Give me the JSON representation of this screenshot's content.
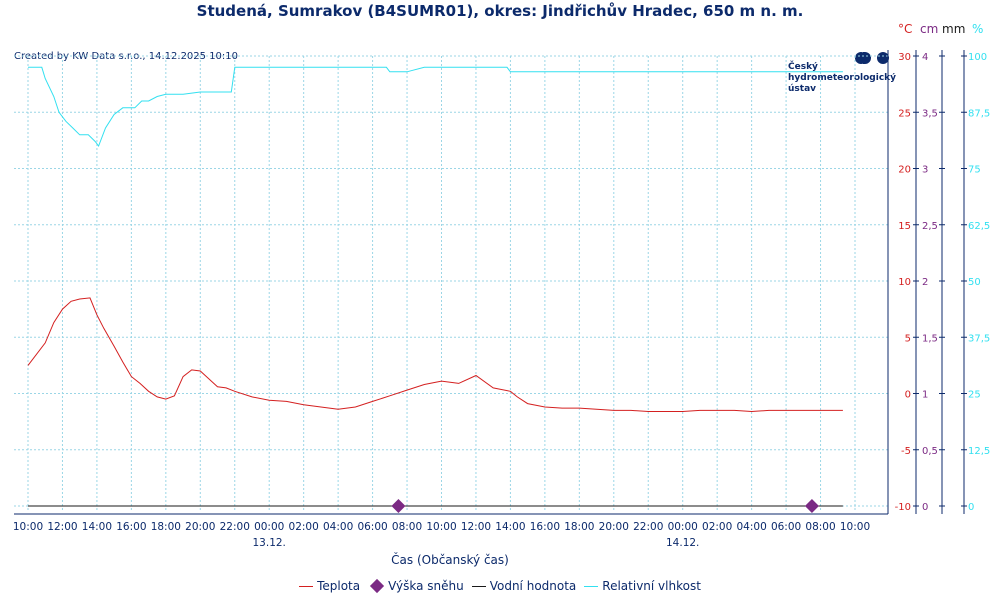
{
  "title": "Studená, Sumrakov (B4SUMR01), okres: Jindřichův Hradec, 650 m n. m.",
  "created": "Created by KW Data s.r.o., 14.12.2025 10:10",
  "logo_text": [
    "Český",
    "hydrometeorologický",
    "ústav"
  ],
  "units": {
    "temperature": "°C",
    "snow": "cm",
    "water": "mm",
    "humidity": "%"
  },
  "colors": {
    "temperature": "#d42020",
    "snow": "#7b2a84",
    "water": "#1a1a1a",
    "humidity": "#33e0f0",
    "axis": "#0c2a6b",
    "grid": "#9bd6e6"
  },
  "axis_title": "Čas (Občanský čas)",
  "legend": [
    {
      "label": "Teplota",
      "kind": "line",
      "color": "#d42020"
    },
    {
      "label": "Výška sněhu",
      "kind": "diamond",
      "color": "#7b2a84"
    },
    {
      "label": "Vodní hodnota",
      "kind": "line",
      "color": "#1a1a1a"
    },
    {
      "label": "Relativní vlhkost",
      "kind": "line",
      "color": "#33e0f0"
    }
  ],
  "chart_data": {
    "type": "line",
    "title": "Studená, Sumrakov (B4SUMR01), okres: Jindřichův Hradec, 650 m n. m.",
    "xlabel": "Čas (Občanský čas)",
    "x_ticks": [
      "10:00",
      "12:00",
      "14:00",
      "16:00",
      "18:00",
      "20:00",
      "22:00",
      "00:00",
      "02:00",
      "04:00",
      "06:00",
      "08:00",
      "10:00",
      "12:00",
      "14:00",
      "16:00",
      "18:00",
      "20:00",
      "22:00",
      "00:00",
      "02:00",
      "04:00",
      "06:00",
      "08:00",
      "10:00"
    ],
    "date_labels": [
      {
        "label": "13.12.",
        "at": "00:00"
      },
      {
        "label": "14.12.",
        "at": "00:00"
      }
    ],
    "xlim_hours_from_start": [
      0,
      48
    ],
    "axes": {
      "temperature": {
        "unit": "°C",
        "ylim": [
          -10,
          30
        ],
        "ticks": [
          "-10",
          "-5",
          "0",
          "5",
          "10",
          "15",
          "20",
          "25",
          "30"
        ]
      },
      "snow": {
        "unit": "cm",
        "ylim": [
          0,
          4
        ],
        "ticks": [
          "0",
          "0,5",
          "1",
          "1,5",
          "2",
          "2,5",
          "3",
          "3,5",
          "4"
        ]
      },
      "water": {
        "unit": "mm",
        "ylim": [
          0,
          4
        ]
      },
      "humidity": {
        "unit": "%",
        "ylim": [
          0,
          100
        ],
        "ticks": [
          "0",
          "12,5",
          "25",
          "37,5",
          "50",
          "62,5",
          "75",
          "87,5",
          "100"
        ]
      }
    },
    "grid": true,
    "legend_position": "bottom",
    "series": [
      {
        "name": "Teplota",
        "axis": "temperature",
        "color": "#d42020",
        "x": [
          0,
          1,
          1.5,
          2,
          2.5,
          3,
          3.6,
          4,
          4.4,
          5,
          5.5,
          6,
          6.5,
          7,
          7.5,
          8,
          8.5,
          9,
          9.5,
          10,
          10.5,
          11,
          11.5,
          12,
          13,
          14,
          15,
          16,
          17,
          18,
          19,
          20,
          21,
          22,
          23,
          24,
          25,
          26,
          27,
          28,
          28.4,
          29,
          30,
          31,
          32,
          33,
          34,
          35,
          36,
          37,
          38,
          39,
          40,
          41,
          42,
          43,
          44,
          45,
          46,
          47,
          47.3
        ],
        "y": [
          2.5,
          4.5,
          6.3,
          7.5,
          8.2,
          8.4,
          8.5,
          7.0,
          5.8,
          4.2,
          2.8,
          1.5,
          0.9,
          0.2,
          -0.3,
          -0.5,
          -0.2,
          1.5,
          2.1,
          2.0,
          1.3,
          0.6,
          0.5,
          0.2,
          -0.3,
          -0.6,
          -0.7,
          -1.0,
          -1.2,
          -1.4,
          -1.2,
          -0.7,
          -0.2,
          0.3,
          0.8,
          1.1,
          0.9,
          1.6,
          0.5,
          0.2,
          -0.3,
          -0.9,
          -1.2,
          -1.3,
          -1.3,
          -1.4,
          -1.5,
          -1.5,
          -1.6,
          -1.6,
          -1.6,
          -1.5,
          -1.5,
          -1.5,
          -1.6,
          -1.5,
          -1.5,
          -1.5,
          -1.5,
          -1.5,
          -1.5
        ]
      },
      {
        "name": "Výška sněhu",
        "axis": "snow",
        "color": "#7b2a84",
        "kind": "points",
        "x": [
          21.5,
          45.5
        ],
        "y": [
          0,
          0
        ]
      },
      {
        "name": "Vodní hodnota",
        "axis": "water",
        "color": "#1a1a1a",
        "x": [
          0,
          47.3
        ],
        "y": [
          0,
          0
        ]
      },
      {
        "name": "Relativní vlhkost",
        "axis": "humidity",
        "color": "#33e0f0",
        "x": [
          0,
          0.8,
          1,
          1.5,
          1.8,
          2.2,
          2.6,
          3,
          3.5,
          3.9,
          4.1,
          4.5,
          5,
          5.5,
          5.8,
          6.2,
          6.6,
          7,
          7.5,
          8,
          9,
          10,
          11,
          11.8,
          12,
          13,
          14,
          15,
          16,
          17,
          18,
          19,
          20,
          20.8,
          21,
          22,
          23,
          24,
          25,
          26,
          27,
          27.8,
          28,
          29,
          30,
          31,
          32,
          33,
          34,
          35,
          36,
          37,
          38,
          39,
          40,
          41,
          42,
          43,
          44,
          45,
          46,
          47,
          47.3
        ],
        "y": [
          97.5,
          97.5,
          95,
          91,
          87.5,
          85.5,
          84,
          82.5,
          82.5,
          81,
          80,
          84,
          87,
          88.5,
          88.5,
          88.5,
          90,
          90,
          91,
          91.5,
          91.5,
          92,
          92,
          92,
          97.5,
          97.5,
          97.5,
          97.5,
          97.5,
          97.5,
          97.5,
          97.5,
          97.5,
          97.5,
          96.5,
          96.5,
          97.5,
          97.5,
          97.5,
          97.5,
          97.5,
          97.5,
          96.5,
          96.5,
          96.5,
          96.5,
          96.5,
          96.5,
          96.5,
          96.5,
          96.5,
          96.5,
          96.5,
          96.5,
          96.5,
          96.5,
          96.5,
          96.5,
          96.5,
          96.5,
          96.5,
          96.5,
          96.5
        ]
      }
    ]
  }
}
